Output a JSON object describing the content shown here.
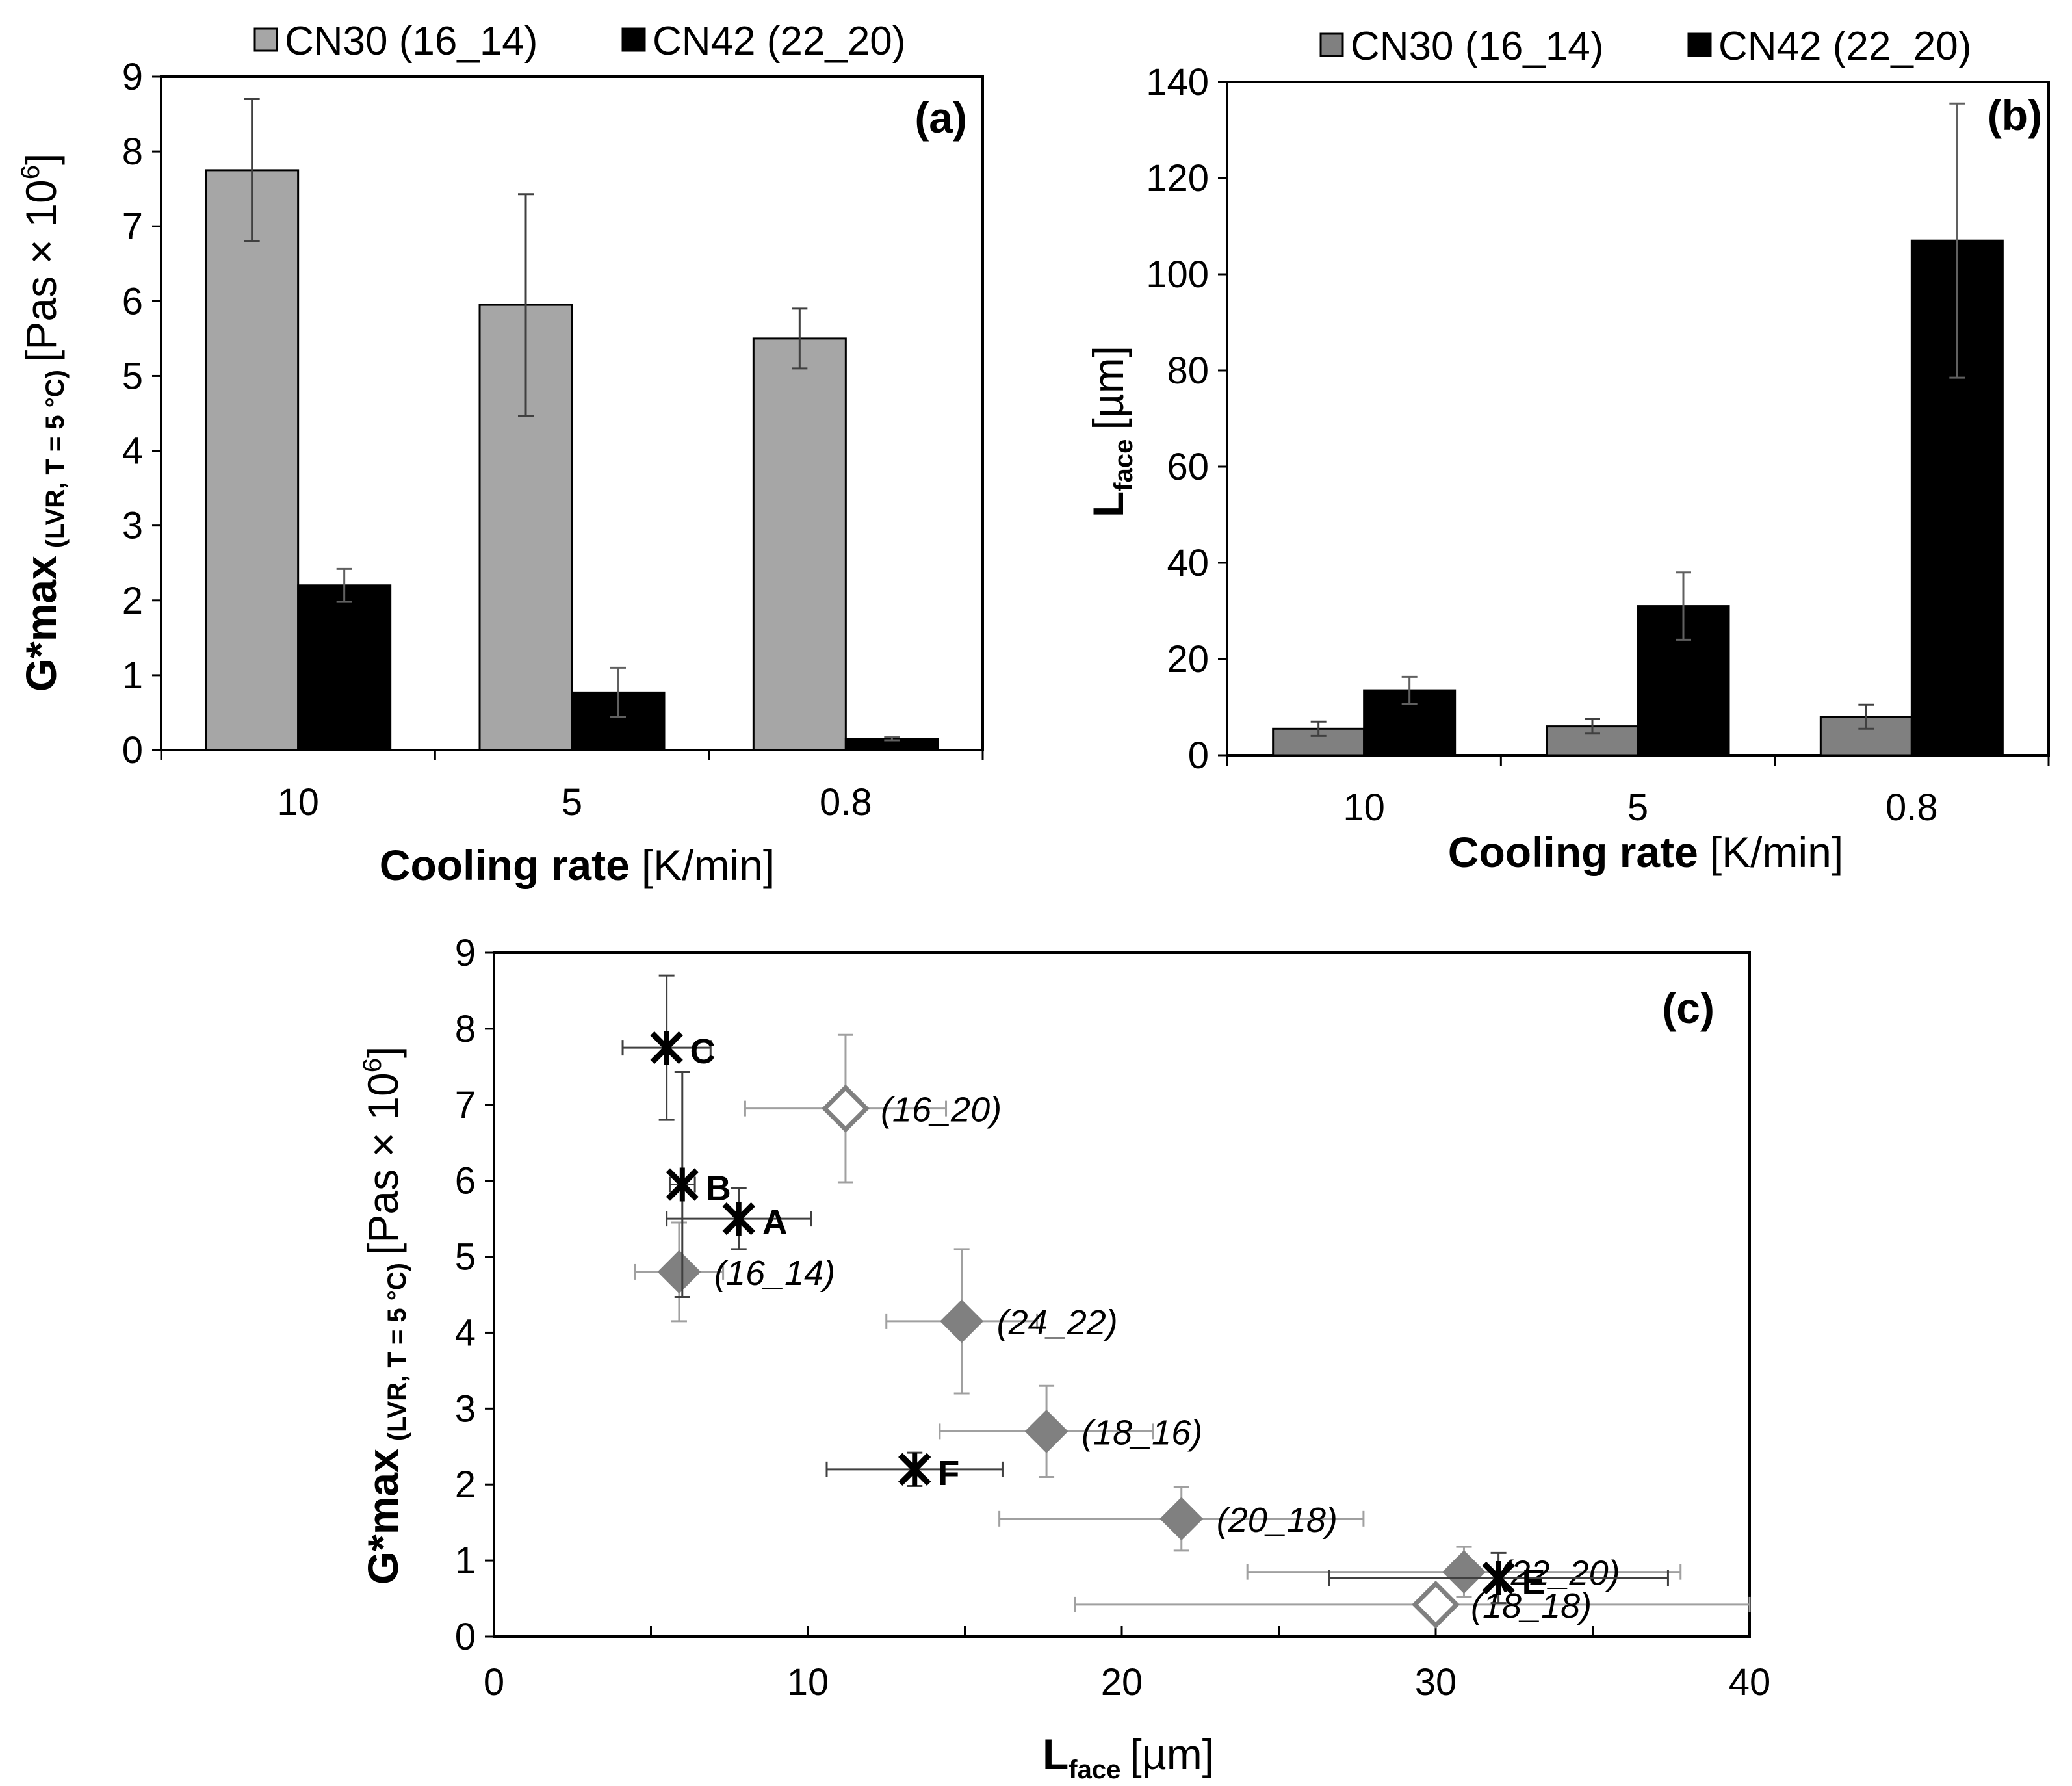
{
  "colors": {
    "cn30": "#a6a6a6",
    "cn42": "#000000",
    "diamond_fill": "#808080",
    "diamond_open": "#808080",
    "err_light": "#a0a0a0",
    "err_dark": "#404040"
  },
  "chart_data": [
    {
      "type": "bar",
      "panel_label": "(a)",
      "categories": [
        "10",
        "5",
        "0.8"
      ],
      "series": [
        {
          "name": "CN30 (16_14)",
          "values": [
            7.75,
            5.95,
            5.5
          ],
          "errors": [
            0.95,
            1.48,
            0.4
          ]
        },
        {
          "name": "CN42 (22_20)",
          "values": [
            2.2,
            0.77,
            0.15
          ],
          "errors": [
            0.22,
            0.33,
            0.02
          ]
        }
      ],
      "xlabel_bold": "Cooling rate",
      "xlabel_unit": "[K/min]",
      "ylabel_main": "G*max",
      "ylabel_sub": "(LVR, T = 5 °C)",
      "ylabel_unit": "[Pas × 10",
      "ylabel_exp": "6",
      "ylabel_close": "]",
      "ylim": [
        0,
        9
      ],
      "yticks": [
        "0",
        "1",
        "2",
        "3",
        "4",
        "5",
        "6",
        "7",
        "8",
        "9"
      ],
      "legend": "top"
    },
    {
      "type": "bar",
      "panel_label": "(b)",
      "categories": [
        "10",
        "5",
        "0.8"
      ],
      "series": [
        {
          "name": "CN30 (16_14)",
          "values": [
            5.5,
            6,
            8
          ],
          "errors": [
            1.5,
            1.5,
            2.5
          ]
        },
        {
          "name": "CN42 (22_20)",
          "values": [
            13.5,
            31,
            107
          ],
          "errors": [
            2.8,
            7,
            28.5
          ]
        }
      ],
      "xlabel_bold": "Cooling rate",
      "xlabel_unit": "[K/min]",
      "ylabel_main": "L",
      "ylabel_sub": "face",
      "ylabel_unit": "[µm]",
      "ylim": [
        0,
        140
      ],
      "yticks": [
        "0",
        "20",
        "40",
        "60",
        "80",
        "100",
        "120",
        "140"
      ],
      "legend": "top"
    },
    {
      "type": "scatter",
      "panel_label": "(c)",
      "xlabel_main": "L",
      "xlabel_sub": "face",
      "xlabel_unit": "[µm]",
      "ylabel_main": "G*max",
      "ylabel_sub": "(LVR, T = 5 °C)",
      "ylabel_unit": "[Pas × 10",
      "ylabel_exp": "6",
      "ylabel_close": "]",
      "xlim": [
        0,
        40
      ],
      "ylim": [
        0,
        9
      ],
      "xticks": [
        "0",
        "10",
        "20",
        "30",
        "40"
      ],
      "yticks": [
        "0",
        "1",
        "2",
        "3",
        "4",
        "5",
        "6",
        "7",
        "8",
        "9"
      ],
      "points": [
        {
          "label": "(16_20)",
          "x": 11.2,
          "y": 6.95,
          "xerr": 3.2,
          "yerr": 0.97,
          "marker": "diamond-open"
        },
        {
          "label": "(16_14)",
          "x": 5.9,
          "y": 4.8,
          "xerr": 1.4,
          "yerr": 0.65,
          "marker": "diamond"
        },
        {
          "label": "(24_22)",
          "x": 14.9,
          "y": 4.15,
          "xerr": 2.4,
          "yerr": 0.95,
          "marker": "diamond"
        },
        {
          "label": "(18_16)",
          "x": 17.6,
          "y": 2.7,
          "xerr": 3.4,
          "yerr": 0.6,
          "marker": "diamond"
        },
        {
          "label": "(20_18)",
          "x": 21.9,
          "y": 1.55,
          "xerr": 5.8,
          "yerr": 0.42,
          "marker": "diamond"
        },
        {
          "label": "(22_20)",
          "x": 30.9,
          "y": 0.85,
          "xerr": 6.9,
          "yerr": 0.33,
          "marker": "diamond"
        },
        {
          "label": "(18_18)",
          "x": 30,
          "y": 0.42,
          "xerr": 11.5,
          "yerr": 0.1,
          "marker": "diamond-open"
        },
        {
          "label": "C",
          "x": 5.5,
          "y": 7.75,
          "xerr": 1.4,
          "yerr": 0.95,
          "marker": "star"
        },
        {
          "label": "B",
          "x": 6,
          "y": 5.95,
          "xerr": 0.4,
          "yerr": 1.48,
          "marker": "star"
        },
        {
          "label": "A",
          "x": 7.8,
          "y": 5.5,
          "xerr": 2.3,
          "yerr": 0.4,
          "marker": "star"
        },
        {
          "label": "F",
          "x": 13.4,
          "y": 2.2,
          "xerr": 2.8,
          "yerr": 0.22,
          "marker": "star"
        },
        {
          "label": "E",
          "x": 32,
          "y": 0.77,
          "xerr": 5.4,
          "yerr": 0.33,
          "marker": "star"
        }
      ]
    }
  ]
}
